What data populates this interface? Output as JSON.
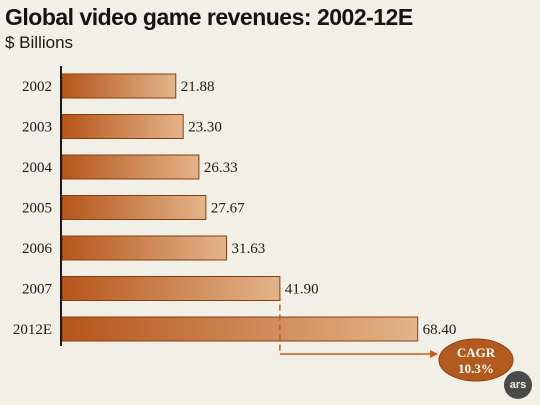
{
  "chart_data": {
    "type": "bar",
    "orientation": "horizontal",
    "title": "Global video game revenues: 2002-12E",
    "subtitle": "$ Billions",
    "categories": [
      "2002",
      "2003",
      "2004",
      "2005",
      "2006",
      "2007",
      "2012E"
    ],
    "values": [
      21.88,
      23.3,
      26.33,
      27.67,
      31.63,
      41.9,
      68.4
    ],
    "value_labels": [
      "21.88",
      "23.30",
      "26.33",
      "27.67",
      "31.63",
      "41.90",
      "68.40"
    ],
    "annotation": {
      "line1": "CAGR",
      "line2": "10.3%",
      "from_category": "2007",
      "to_category": "2012E"
    },
    "grid": false,
    "legend": "none",
    "colors": {
      "bar_dark": "#b5551a",
      "bar_light": "#e3b48a",
      "bar_border": "#8a3e10",
      "annotation_fill": "#b35a1f",
      "annotation_line": "#c0601a"
    }
  },
  "logo_text": "ars"
}
